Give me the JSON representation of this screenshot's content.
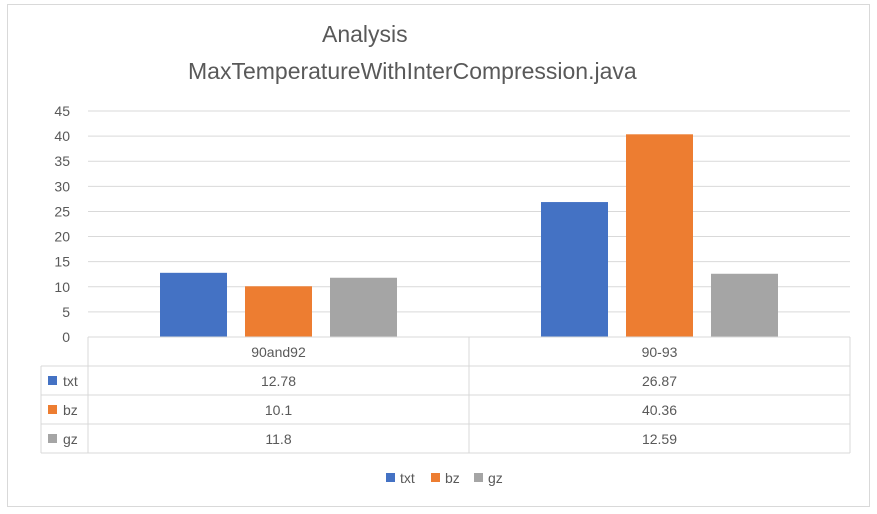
{
  "chart_data": {
    "type": "bar",
    "title_line1": "Analysis",
    "title_line2": "MaxTemperatureWithInterCompression.java",
    "categories": [
      "90and92",
      "90-93"
    ],
    "series": [
      {
        "name": "txt",
        "values": [
          12.78,
          26.87
        ],
        "color": "#4472c4"
      },
      {
        "name": "bz",
        "values": [
          10.1,
          40.36
        ],
        "color": "#ed7d31"
      },
      {
        "name": "gz",
        "values": [
          11.8,
          12.59
        ],
        "color": "#a5a5a5"
      }
    ],
    "data_table_text": {
      "txt": [
        "12.78",
        "26.87"
      ],
      "bz": [
        "10.1",
        "40.36"
      ],
      "gz": [
        "11.8",
        "12.59"
      ]
    },
    "y_ticks": [
      "0",
      "5",
      "10",
      "15",
      "20",
      "25",
      "30",
      "35",
      "40",
      "45"
    ],
    "ylim": [
      0,
      45
    ],
    "grid": true,
    "legend_position": "bottom",
    "data_table": true
  }
}
